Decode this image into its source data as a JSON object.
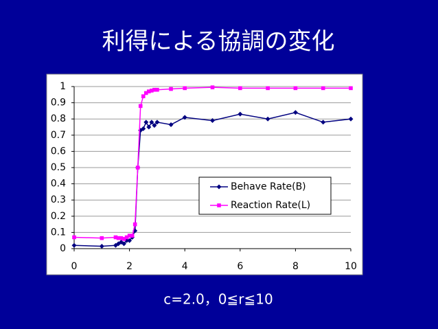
{
  "chart_data": {
    "type": "line",
    "title": "利得による協調の変化",
    "caption": "c=2.0，0≦r≦10",
    "x": [
      0,
      1,
      1.5,
      1.6,
      1.7,
      1.8,
      1.9,
      2.0,
      2.1,
      2.2,
      2.3,
      2.4,
      2.5,
      2.6,
      2.7,
      2.8,
      2.9,
      3.0,
      3.5,
      4,
      5,
      6,
      7,
      8,
      9,
      10
    ],
    "series": [
      {
        "name": "Behave Rate(B)",
        "color": "#000080",
        "marker": "diamond",
        "values": [
          0.02,
          0.015,
          0.02,
          0.03,
          0.04,
          0.03,
          0.05,
          0.05,
          0.07,
          0.11,
          0.5,
          0.73,
          0.74,
          0.78,
          0.75,
          0.78,
          0.76,
          0.78,
          0.765,
          0.81,
          0.79,
          0.83,
          0.8,
          0.84,
          0.78,
          0.8
        ]
      },
      {
        "name": "Reaction Rate(L)",
        "color": "#FF00FF",
        "marker": "square",
        "values": [
          0.07,
          0.065,
          0.07,
          0.065,
          0.065,
          0.06,
          0.07,
          0.08,
          0.08,
          0.15,
          0.5,
          0.88,
          0.94,
          0.96,
          0.97,
          0.975,
          0.98,
          0.98,
          0.985,
          0.99,
          0.995,
          0.99,
          0.99,
          0.99,
          0.99,
          0.99
        ]
      }
    ],
    "xlim": [
      0,
      10
    ],
    "xticks": [
      0,
      2,
      4,
      6,
      8,
      10
    ],
    "ylim": [
      0,
      1
    ],
    "yticks": [
      0,
      0.1,
      0.2,
      0.3,
      0.4,
      0.5,
      0.6,
      0.7,
      0.8,
      0.9,
      1
    ],
    "grid": true,
    "legend": "lower-right"
  }
}
